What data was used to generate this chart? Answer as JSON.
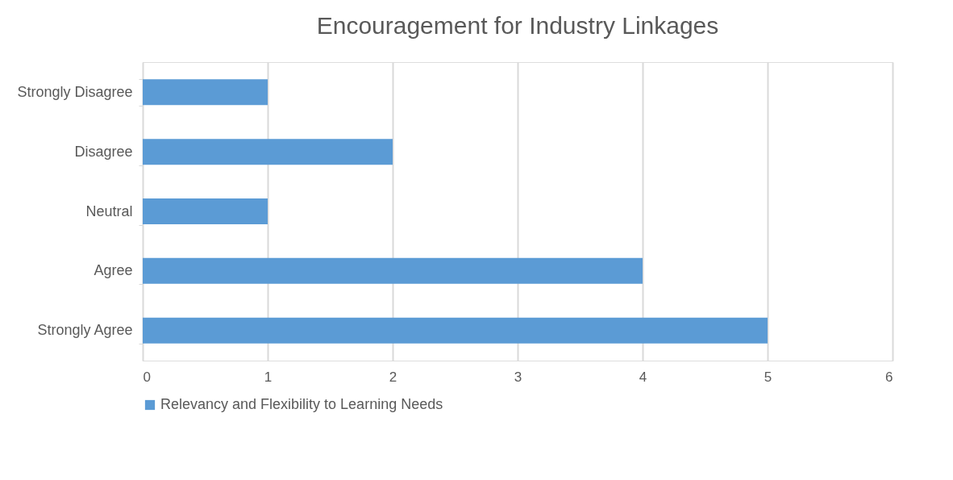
{
  "chart_data": {
    "type": "bar",
    "orientation": "horizontal",
    "title": "Encouragement for Industry Linkages",
    "categories": [
      "Strongly Disagree",
      "Disagree",
      "Neutral",
      "Agree",
      "Strongly Agree"
    ],
    "series": [
      {
        "name": "Relevancy and Flexibility to Learning Needs",
        "color": "#5b9bd5",
        "values": [
          1,
          2,
          1,
          4,
          5
        ]
      }
    ],
    "xlim": [
      0,
      6
    ],
    "xticks": [
      0,
      1,
      2,
      3,
      4,
      5,
      6
    ],
    "grid": "x",
    "legend": "bottom"
  }
}
